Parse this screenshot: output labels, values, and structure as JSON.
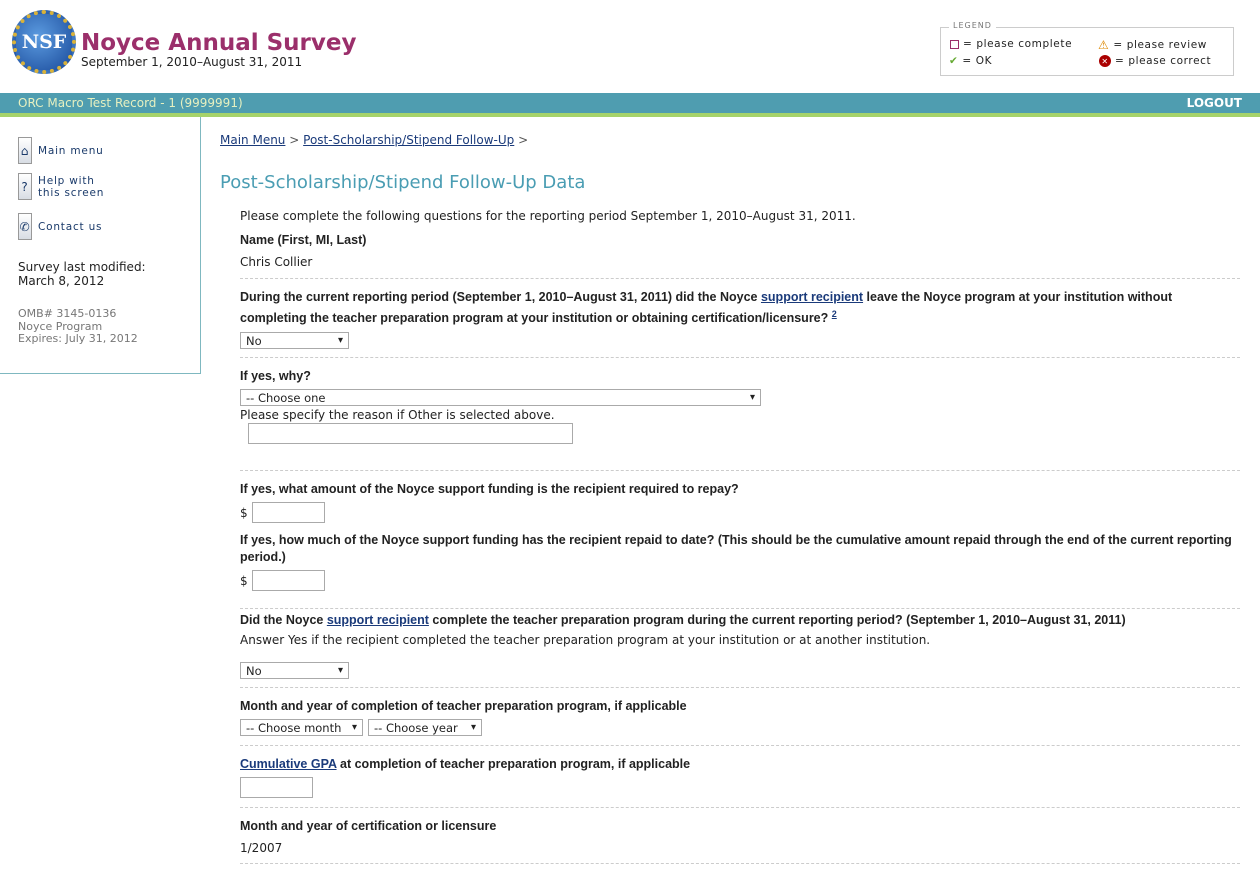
{
  "header": {
    "logo_text": "NSF",
    "title": "Noyce Annual Survey",
    "subtitle": "September 1, 2010–August 31, 2011"
  },
  "legend": {
    "title": "LEGEND",
    "complete": "= please complete",
    "ok": "= OK",
    "review": "= please review",
    "correct": "= please correct"
  },
  "bar": {
    "record": "ORC Macro Test Record - 1 (9999991)",
    "logout": "LOGOUT"
  },
  "sidebar": {
    "main_menu": "Main menu",
    "help_1": "Help with",
    "help_2": "this screen",
    "contact": "Contact us",
    "modified_label": "Survey last modified:",
    "modified_date": "March 8, 2012",
    "omb": "OMB# 3145-0136",
    "program": "Noyce Program",
    "expires": "Expires: July 31, 2012"
  },
  "breadcrumb": {
    "main": "Main Menu",
    "sep": ">",
    "current": "Post-Scholarship/Stipend Follow-Up"
  },
  "page_title": "Post-Scholarship/Stipend Follow-Up Data",
  "intro": "Please complete the following questions for the reporting period September 1, 2010–August 31, 2011.",
  "name": {
    "label": "Name (First, MI, Last)",
    "value": "Chris Collier"
  },
  "q_leave": {
    "pre": "During the current reporting period (September 1, 2010–August 31, 2011) did the Noyce ",
    "link": "support recipient",
    "post": " leave the Noyce program at your institution without completing the teacher preparation program at your institution or obtaining certification/licensure? ",
    "footnote": "2",
    "value": "No"
  },
  "q_why": {
    "label": "If yes, why?",
    "value": "-- Choose one",
    "other_label": "Please specify the reason if Other is selected above.",
    "other_value": ""
  },
  "q_repay": {
    "label": "If yes, what amount of the Noyce support funding is the recipient required to repay?",
    "currency": "$",
    "value": ""
  },
  "q_repaid": {
    "label": "If yes, how much of the Noyce support funding has the recipient repaid to date? (This should be the cumulative amount repaid through the end of the current reporting period.)",
    "currency": "$",
    "value": ""
  },
  "q_complete": {
    "pre": "Did the Noyce ",
    "link": "support recipient",
    "post": " complete the teacher preparation program during the current reporting period? (September 1, 2010–August 31, 2011)",
    "note": "Answer Yes if the recipient completed the teacher preparation program at your institution or at another institution.",
    "value": "No"
  },
  "q_date": {
    "label": "Month and year of completion of teacher preparation program, if applicable",
    "month": "-- Choose month",
    "year": "-- Choose year"
  },
  "q_gpa": {
    "link": "Cumulative GPA",
    "post": " at completion of teacher preparation program, if applicable",
    "value": ""
  },
  "q_cert": {
    "label": "Month and year of certification or licensure",
    "value": "1/2007"
  }
}
